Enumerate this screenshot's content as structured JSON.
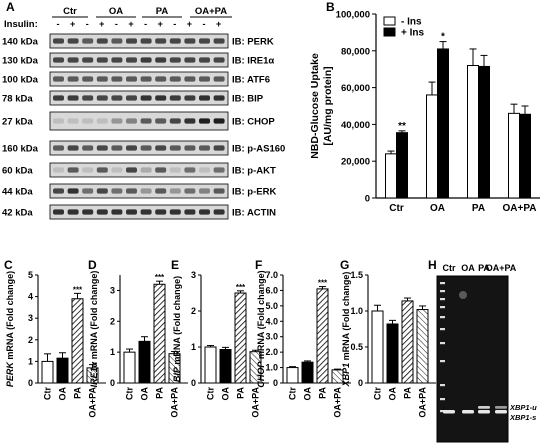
{
  "colors": {
    "white_bar": "#ffffff",
    "black_bar": "#000000",
    "hatch": "#000000",
    "gel_bg": "#111111",
    "band": "#dddddd"
  },
  "panelA": {
    "letter": "A",
    "insulin_label": "Insulin:",
    "groups": [
      "Ctr",
      "OA",
      "PA",
      "OA+PA"
    ],
    "lane_signs": [
      "-",
      "+",
      "-",
      "+",
      "-",
      "+",
      "-",
      "+",
      "-",
      "+",
      "-",
      "+"
    ],
    "rows": [
      {
        "kda": "140 kDa",
        "ib": "IB: PERK"
      },
      {
        "kda": "130 kDa",
        "ib": "IB: IRE1α"
      },
      {
        "kda": "100 kDa",
        "ib": "IB: ATF6"
      },
      {
        "kda": "78 kDa",
        "ib": "IB: BIP"
      },
      {
        "kda": "27 kDa",
        "ib": "IB: CHOP"
      },
      {
        "kda": "160 kDa",
        "ib": "IB: p-AS160"
      },
      {
        "kda": "60 kDa",
        "ib": "IB: p-AKT"
      },
      {
        "kda": "44 kDa",
        "ib": "IB: p-ERK"
      },
      {
        "kda": "42 kDa",
        "ib": "IB: ACTIN"
      }
    ]
  },
  "chart_data": [
    {
      "panel": "B",
      "type": "bar",
      "ylabel": "NBD-Glucose Uptake [AU/mg protein]",
      "ylim": [
        0,
        100000
      ],
      "yticks": [
        "0",
        "20,000",
        "40,000",
        "60,000",
        "80,000",
        "100,000"
      ],
      "categories": [
        "Ctr",
        "OA",
        "PA",
        "OA+PA"
      ],
      "series": [
        {
          "name": "- Ins",
          "fill": "white",
          "values": [
            24000,
            56000,
            72000,
            46000
          ],
          "errors": [
            1500,
            7000,
            9000,
            5000
          ]
        },
        {
          "name": "+ Ins",
          "fill": "black",
          "values": [
            35500,
            81000,
            71500,
            45500
          ],
          "errors": [
            1000,
            4000,
            6000,
            4500
          ]
        }
      ],
      "annotations": [
        "**",
        "*",
        "",
        ""
      ],
      "legend": "top-left"
    },
    {
      "panel": "C",
      "type": "bar",
      "ylabel_gene": "PERK",
      "ylabel_rest": " mRNA (Fold change)",
      "ylim": [
        0,
        5
      ],
      "yticks": [
        "0",
        "1",
        "2",
        "3",
        "4",
        "5"
      ],
      "categories": [
        "Ctr",
        "OA",
        "PA",
        "OA+PA"
      ],
      "values": [
        1.0,
        1.15,
        3.9,
        0.7
      ],
      "errors": [
        0.35,
        0.25,
        0.25,
        0.15
      ],
      "sig": [
        "",
        "",
        "***",
        ""
      ]
    },
    {
      "panel": "D",
      "type": "bar",
      "ylabel_gene": "IRE1α",
      "ylabel_rest": " mRNA (Fold change)",
      "ylim": [
        0,
        3.5
      ],
      "yticks": [
        "0",
        "1",
        "2",
        "3"
      ],
      "categories": [
        "Ctr",
        "OA",
        "PA",
        "OA+PA"
      ],
      "values": [
        1.0,
        1.35,
        3.2,
        0.95
      ],
      "errors": [
        0.1,
        0.15,
        0.1,
        0.07
      ],
      "sig": [
        "",
        "",
        "***",
        ""
      ]
    },
    {
      "panel": "E",
      "type": "bar",
      "ylabel_gene": "BIP",
      "ylabel_rest": " mRNA (Fold change)",
      "ylim": [
        0,
        3
      ],
      "yticks": [
        "0",
        "1",
        "2",
        "3"
      ],
      "categories": [
        "Ctr",
        "OA",
        "PA",
        "OA+PA"
      ],
      "values": [
        1.0,
        0.93,
        2.5,
        0.87
      ],
      "errors": [
        0.04,
        0.06,
        0.06,
        0.04
      ],
      "sig": [
        "",
        "",
        "***",
        ""
      ]
    },
    {
      "panel": "F",
      "type": "bar",
      "ylabel_gene": "CHOP",
      "ylabel_rest": " mRNA (Fold change)",
      "ylim": [
        0,
        7
      ],
      "yticks": [
        "0",
        "1.0",
        "2.0",
        "3.0",
        "4.0",
        "5.0",
        "6.0",
        "7.0"
      ],
      "categories": [
        "Ctr",
        "OA",
        "PA",
        "OA+PA"
      ],
      "values": [
        1.0,
        1.35,
        6.1,
        0.85
      ],
      "errors": [
        0.06,
        0.08,
        0.15,
        0.05
      ],
      "sig": [
        "",
        "",
        "***",
        ""
      ]
    },
    {
      "panel": "G",
      "type": "bar",
      "ylabel_gene": "XBP1",
      "ylabel_rest": " mRNA (Fold change)",
      "ylim": [
        0,
        1.5
      ],
      "yticks": [
        "0",
        "0.5",
        "1.0",
        "1.5"
      ],
      "categories": [
        "Ctr",
        "OA",
        "PA",
        "OA+PA"
      ],
      "values": [
        1.0,
        0.82,
        1.14,
        1.02
      ],
      "errors": [
        0.08,
        0.05,
        0.04,
        0.05
      ],
      "sig": [
        "",
        "",
        "",
        ""
      ]
    }
  ],
  "panelH": {
    "letter": "H",
    "lanes": [
      "Ctr",
      "OA",
      "PA",
      "OA+PA"
    ],
    "band_u": "XBP1-u",
    "band_s": "XBP1-s"
  }
}
